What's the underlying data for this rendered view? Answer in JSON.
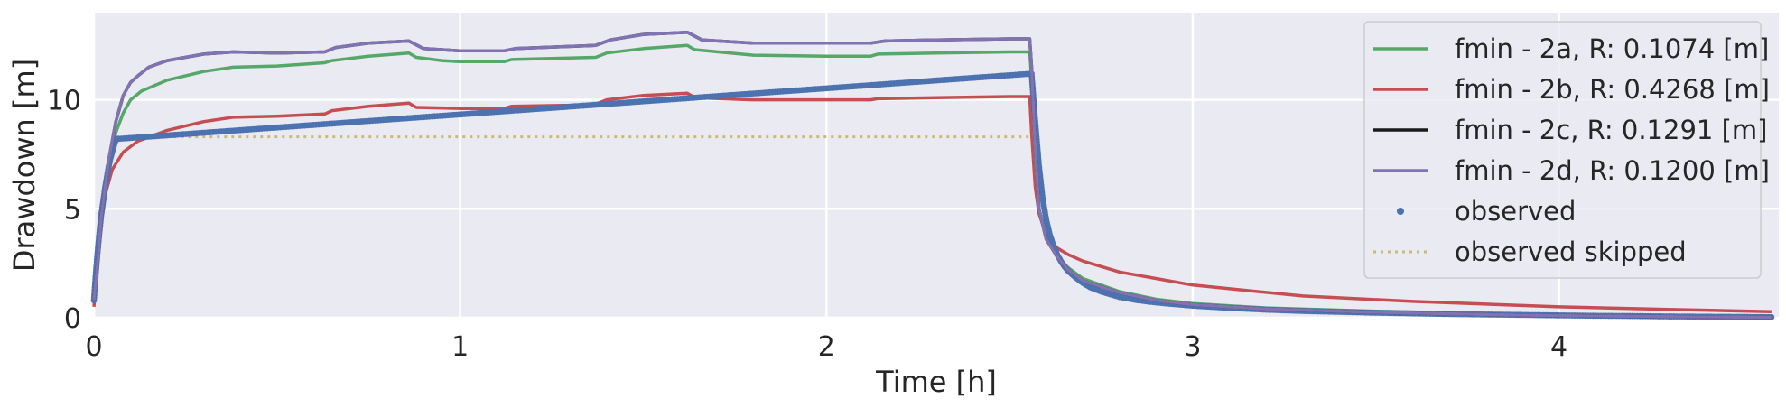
{
  "chart_data": {
    "type": "line",
    "title": "",
    "xlabel": "Time [h]",
    "ylabel": "Drawdown [m]",
    "xlim": [
      0,
      4.6
    ],
    "ylim": [
      0,
      14
    ],
    "xticks": [
      0,
      1,
      2,
      3,
      4
    ],
    "yticks": [
      0,
      5,
      10
    ],
    "grid": true,
    "legend_position": "top-right",
    "series": [
      {
        "name": "fmin - 2a, R: 0.1074 [m]",
        "color": "#55a868",
        "style": "solid",
        "x": [
          0.0,
          0.01,
          0.02,
          0.04,
          0.06,
          0.08,
          0.1,
          0.13,
          0.2,
          0.3,
          0.38,
          0.5,
          0.63,
          0.65,
          0.75,
          0.86,
          0.88,
          0.95,
          1.0,
          1.12,
          1.14,
          1.3,
          1.37,
          1.4,
          1.5,
          1.62,
          1.64,
          1.8,
          2.0,
          2.12,
          2.14,
          2.3,
          2.5,
          2.555,
          2.56,
          2.57,
          2.58,
          2.6,
          2.63,
          2.66,
          2.7,
          2.8,
          2.9,
          3.0,
          3.2,
          3.5,
          3.8,
          4.0,
          4.3,
          4.58
        ],
        "y": [
          0.8,
          2.5,
          4.5,
          6.8,
          8.5,
          9.4,
          10.0,
          10.4,
          10.9,
          11.3,
          11.5,
          11.55,
          11.7,
          11.8,
          12.0,
          12.15,
          11.95,
          11.8,
          11.75,
          11.75,
          11.85,
          11.92,
          11.95,
          12.15,
          12.35,
          12.5,
          12.3,
          12.05,
          12.0,
          12.0,
          12.1,
          12.15,
          12.2,
          12.2,
          11.0,
          7.5,
          5.0,
          3.6,
          2.8,
          2.3,
          1.8,
          1.2,
          0.85,
          0.65,
          0.45,
          0.3,
          0.2,
          0.15,
          0.1,
          0.05
        ]
      },
      {
        "name": "fmin - 2b, R: 0.4268 [m]",
        "color": "#c44e52",
        "style": "solid",
        "x": [
          0.0,
          0.005,
          0.01,
          0.02,
          0.03,
          0.05,
          0.08,
          0.12,
          0.2,
          0.3,
          0.38,
          0.5,
          0.63,
          0.65,
          0.75,
          0.86,
          0.88,
          1.0,
          1.12,
          1.14,
          1.3,
          1.37,
          1.4,
          1.5,
          1.62,
          1.64,
          1.8,
          2.0,
          2.12,
          2.14,
          2.3,
          2.5,
          2.555,
          2.56,
          2.57,
          2.58,
          2.6,
          2.63,
          2.66,
          2.7,
          2.8,
          3.0,
          3.3,
          3.6,
          4.0,
          4.3,
          4.58
        ],
        "y": [
          0.5,
          1.5,
          2.8,
          4.5,
          5.6,
          6.8,
          7.6,
          8.1,
          8.6,
          9.0,
          9.2,
          9.25,
          9.35,
          9.5,
          9.7,
          9.85,
          9.65,
          9.6,
          9.6,
          9.7,
          9.75,
          9.8,
          10.0,
          10.2,
          10.3,
          10.1,
          10.0,
          10.0,
          10.0,
          10.05,
          10.1,
          10.15,
          10.15,
          8.5,
          6.0,
          4.8,
          3.8,
          3.2,
          2.9,
          2.6,
          2.1,
          1.5,
          1.0,
          0.75,
          0.5,
          0.38,
          0.28
        ]
      },
      {
        "name": "fmin - 2c, R: 0.1291 [m]",
        "color": "#1a1a1a",
        "style": "solid",
        "x": [
          0.0,
          0.01,
          0.02,
          0.04,
          0.06,
          0.08,
          0.1,
          0.12,
          0.15,
          0.2,
          0.3,
          0.38,
          0.5,
          0.63,
          0.66,
          0.75,
          0.86,
          0.9,
          1.0,
          1.12,
          1.15,
          1.3,
          1.37,
          1.41,
          1.5,
          1.62,
          1.66,
          1.8,
          2.0,
          2.12,
          2.16,
          2.3,
          2.5,
          2.555,
          2.56,
          2.57,
          2.58,
          2.6,
          2.63,
          2.66,
          2.7,
          2.8,
          2.9,
          3.0,
          3.2,
          3.5,
          3.8,
          4.0,
          4.3,
          4.58
        ],
        "y": [
          0.8,
          2.5,
          4.6,
          7.2,
          9.0,
          10.2,
          10.8,
          11.1,
          11.5,
          11.8,
          12.1,
          12.2,
          12.15,
          12.2,
          12.4,
          12.6,
          12.7,
          12.35,
          12.25,
          12.25,
          12.35,
          12.45,
          12.5,
          12.75,
          13.0,
          13.1,
          12.75,
          12.6,
          12.6,
          12.6,
          12.7,
          12.75,
          12.8,
          12.8,
          11.5,
          7.8,
          5.0,
          3.6,
          2.8,
          2.2,
          1.7,
          1.15,
          0.8,
          0.6,
          0.4,
          0.25,
          0.15,
          0.1,
          0.05,
          0.02
        ]
      },
      {
        "name": "fmin - 2d, R: 0.1200 [m]",
        "color": "#8172b2",
        "style": "solid",
        "x": [
          0.0,
          0.01,
          0.02,
          0.04,
          0.06,
          0.08,
          0.1,
          0.12,
          0.15,
          0.2,
          0.3,
          0.38,
          0.5,
          0.63,
          0.66,
          0.75,
          0.86,
          0.9,
          1.0,
          1.12,
          1.15,
          1.3,
          1.37,
          1.41,
          1.5,
          1.62,
          1.66,
          1.8,
          2.0,
          2.12,
          2.16,
          2.3,
          2.5,
          2.555,
          2.56,
          2.57,
          2.58,
          2.6,
          2.63,
          2.66,
          2.7,
          2.8,
          2.9,
          3.0,
          3.2,
          3.5,
          3.8,
          4.0,
          4.3,
          4.58
        ],
        "y": [
          0.8,
          2.5,
          4.6,
          7.2,
          9.0,
          10.2,
          10.8,
          11.1,
          11.5,
          11.8,
          12.1,
          12.2,
          12.15,
          12.2,
          12.4,
          12.6,
          12.7,
          12.35,
          12.25,
          12.25,
          12.35,
          12.45,
          12.5,
          12.75,
          13.0,
          13.1,
          12.75,
          12.6,
          12.6,
          12.6,
          12.7,
          12.75,
          12.8,
          12.8,
          11.5,
          7.8,
          5.0,
          3.6,
          2.8,
          2.2,
          1.7,
          1.15,
          0.8,
          0.6,
          0.4,
          0.25,
          0.15,
          0.1,
          0.05,
          0.02
        ]
      },
      {
        "name": "observed",
        "color": "#4c72b0",
        "style": "dots",
        "x": [
          0.0,
          0.005,
          0.01,
          0.015,
          0.02,
          0.025,
          0.03,
          0.035,
          0.04,
          0.045,
          0.05,
          0.06,
          2.56,
          2.57,
          2.58,
          2.59,
          2.6,
          2.61,
          2.62,
          2.63,
          2.64,
          2.65,
          2.66,
          2.68,
          2.7,
          2.72,
          2.75,
          2.78,
          2.8,
          2.85,
          2.9,
          2.95,
          3.0,
          3.05,
          3.1,
          3.15,
          3.2,
          3.3,
          3.4,
          3.5,
          3.6,
          3.7,
          3.8,
          3.9,
          4.0,
          4.1,
          4.2,
          4.3,
          4.4,
          4.5,
          4.58
        ],
        "y": [
          0.8,
          2.0,
          3.0,
          3.9,
          4.7,
          5.3,
          5.9,
          6.4,
          6.9,
          7.3,
          7.6,
          8.2,
          11.2,
          9.0,
          7.0,
          5.5,
          4.5,
          3.8,
          3.3,
          2.9,
          2.6,
          2.35,
          2.15,
          1.85,
          1.6,
          1.4,
          1.2,
          1.05,
          0.95,
          0.8,
          0.7,
          0.62,
          0.55,
          0.5,
          0.45,
          0.41,
          0.37,
          0.31,
          0.27,
          0.23,
          0.2,
          0.17,
          0.15,
          0.13,
          0.11,
          0.09,
          0.08,
          0.06,
          0.05,
          0.04,
          0.03
        ]
      },
      {
        "name": "observed skipped",
        "color": "#ccb974",
        "style": "dotted",
        "x": [
          0.06,
          2.56
        ],
        "y": [
          8.3,
          8.3
        ]
      }
    ]
  }
}
